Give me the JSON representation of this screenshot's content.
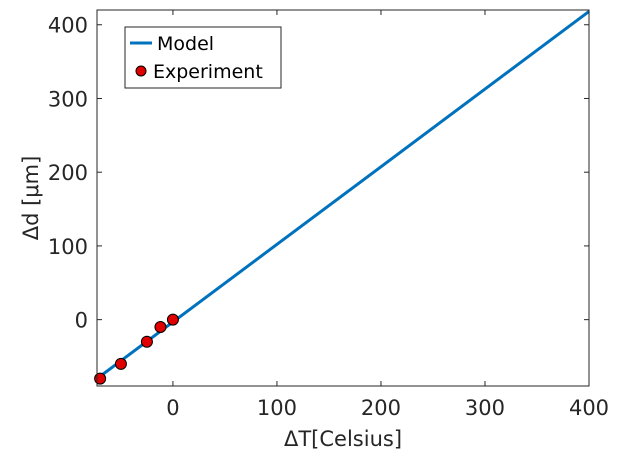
{
  "chart_data": {
    "type": "line",
    "title": "",
    "xlabel": "ΔT[Celsius]",
    "ylabel": "Δd [μm]",
    "xlim": [
      -73,
      400
    ],
    "ylim": [
      -90,
      420
    ],
    "x_ticks": [
      0,
      100,
      200,
      300,
      400
    ],
    "y_ticks": [
      0,
      100,
      200,
      300,
      400
    ],
    "x_tick_labels": [
      "0",
      "100",
      "200",
      "300",
      "400"
    ],
    "y_tick_labels": [
      "0",
      "100",
      "200",
      "300",
      "400"
    ],
    "grid": false,
    "legend_position": "top-left",
    "series": [
      {
        "name": "Model",
        "kind": "line",
        "color": "#0072BD",
        "x": [
          -73,
          400
        ],
        "y": [
          -80,
          418
        ]
      },
      {
        "name": "Experiment",
        "kind": "scatter",
        "color": "#E00000",
        "edge_color": "#000000",
        "x": [
          -70,
          -50,
          -25,
          -12,
          0
        ],
        "y": [
          -80,
          -60,
          -30,
          -10,
          0
        ]
      }
    ]
  }
}
